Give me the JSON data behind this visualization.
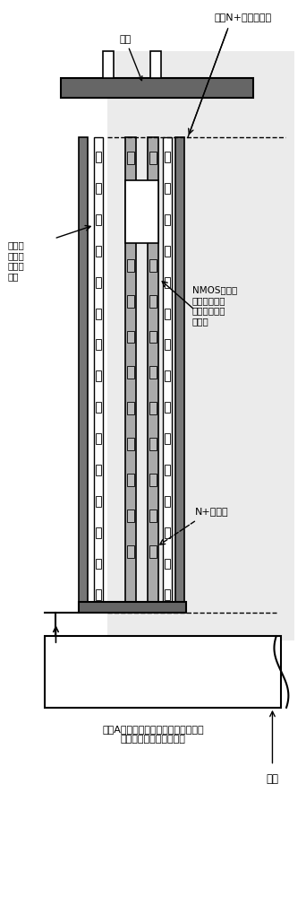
{
  "fig_width": 3.42,
  "fig_height": 10.0,
  "dpi": 100,
  "labels": {
    "ground_line": "地线",
    "parasitic": "寄生N+有源区电阻",
    "metal_far": "沿金属\n层远离\n端口的\n位置",
    "nmos_gate": "NMOS管的栅\n极（直接接地\n或者通过电阻\n接地）",
    "n_active": "N+有源区",
    "node_a": "节点A（连接多晶电阻或者有源区电阻\n或者直接连接内部电路）",
    "port": "端口"
  },
  "colors": {
    "dark_gray": "#555555",
    "mid_gray": "#999999",
    "light_gray": "#cccccc",
    "white": "#ffffff",
    "black": "#000000",
    "bg_dots": "#e0e0e0"
  }
}
